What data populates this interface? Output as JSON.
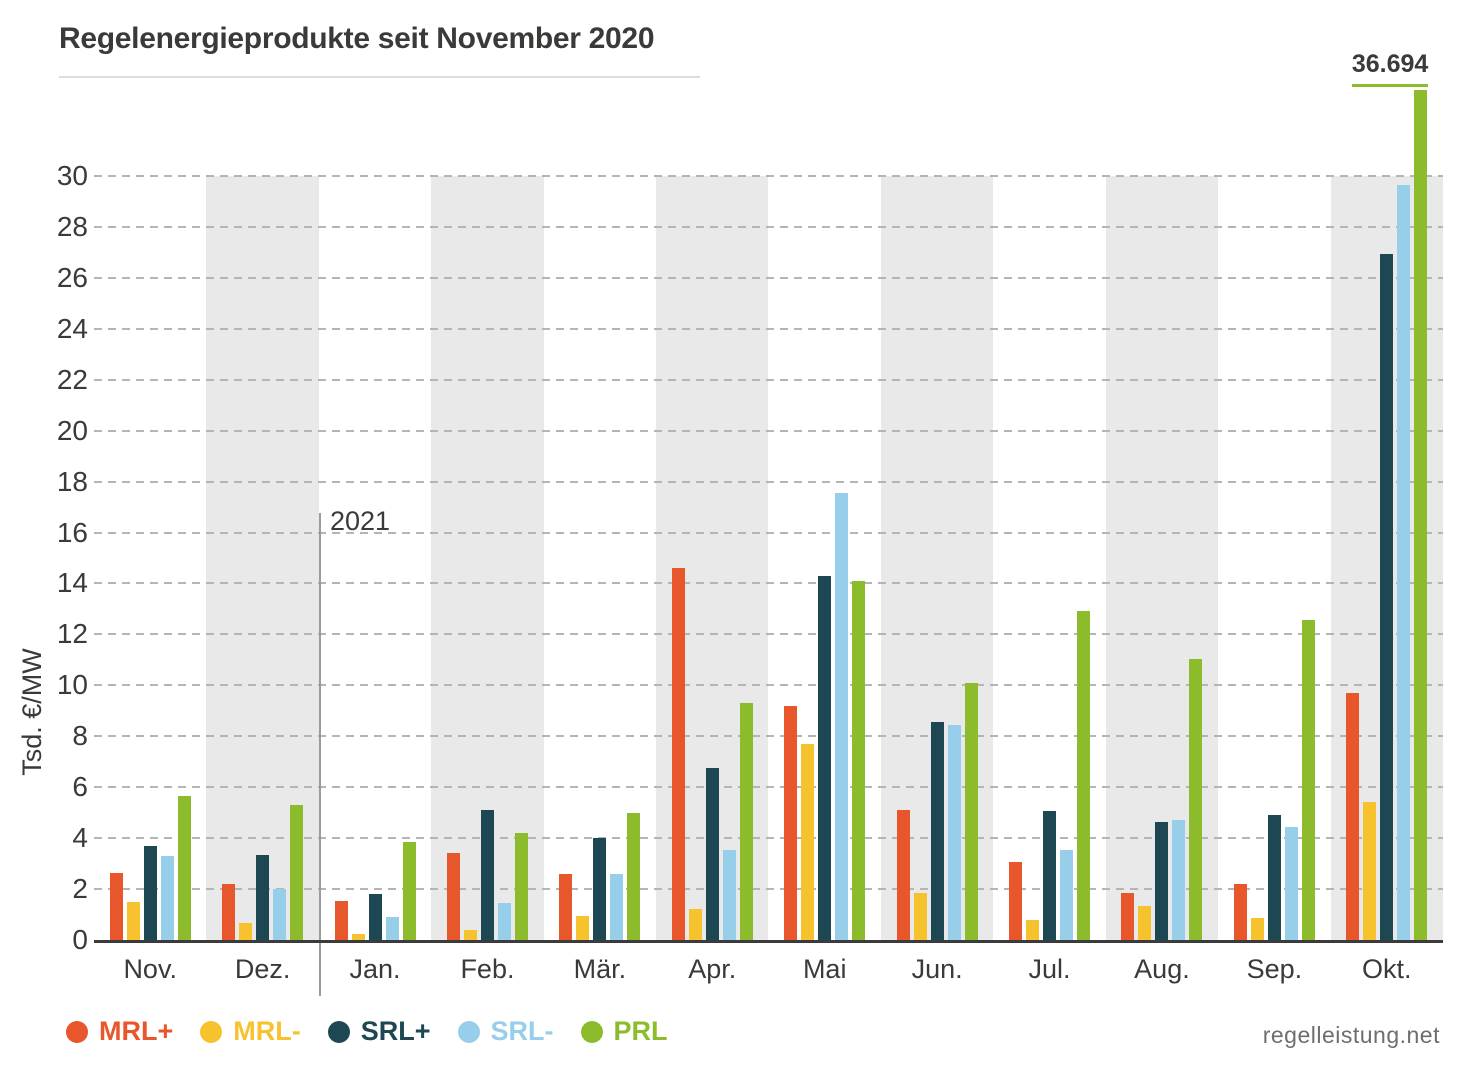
{
  "title": "Regelenergieprodukte seit November 2020",
  "y_axis": {
    "label": "Tsd. €/MW",
    "ticks": [
      0,
      2,
      4,
      6,
      8,
      10,
      12,
      14,
      16,
      18,
      20,
      22,
      24,
      26,
      28,
      30
    ],
    "max": 30
  },
  "year_divider": {
    "label": "2021",
    "between": [
      "Dez.",
      "Jan."
    ]
  },
  "peak_annotation": {
    "label": "36.694",
    "applies_to": {
      "month": "Okt.",
      "series": "PRL"
    }
  },
  "footer": {
    "credit": "regelleistung.net"
  },
  "colors": {
    "mrl_plus": "#e8572b",
    "mrl_minus": "#f6c32f",
    "srl_plus": "#1d4752",
    "srl_minus": "#97ceea",
    "prl": "#8cbb2b",
    "text": "#3a3a39",
    "grid": "#b5b5b5",
    "shade_band": "#e9e9e9"
  },
  "chart_data": {
    "type": "bar",
    "title": "Regelenergieprodukte seit November 2020",
    "xlabel": "",
    "ylabel": "Tsd. €/MW",
    "ylim": [
      0,
      30
    ],
    "grid": "horizontal dashed lines at even values 2-30",
    "legend_position": "bottom-left",
    "shaded_categories": [
      "Dez.",
      "Feb.",
      "Apr.",
      "Jun.",
      "Aug.",
      "Okt."
    ],
    "categories": [
      "Nov.",
      "Dez.",
      "Jan.",
      "Feb.",
      "Mär.",
      "Apr.",
      "Mai",
      "Jun.",
      "Jul.",
      "Aug.",
      "Sep.",
      "Okt."
    ],
    "series": [
      {
        "id": "mrl_plus",
        "name": "MRL+",
        "color": "#e8572b",
        "values": [
          2.65,
          2.2,
          1.55,
          3.4,
          2.6,
          14.6,
          9.2,
          5.1,
          3.05,
          1.85,
          2.2,
          9.7
        ]
      },
      {
        "id": "mrl_minus",
        "name": "MRL-",
        "color": "#f6c32f",
        "values": [
          1.5,
          0.65,
          0.25,
          0.4,
          0.95,
          1.2,
          7.7,
          1.85,
          0.8,
          1.35,
          0.85,
          5.4
        ]
      },
      {
        "id": "srl_plus",
        "name": "SRL+",
        "color": "#1d4752",
        "values": [
          3.7,
          3.35,
          1.8,
          5.1,
          4.0,
          6.75,
          14.3,
          8.55,
          5.05,
          4.65,
          4.9,
          26.95
        ]
      },
      {
        "id": "srl_minus",
        "name": "SRL-",
        "color": "#97ceea",
        "values": [
          3.3,
          2.0,
          0.9,
          1.45,
          2.6,
          3.55,
          17.55,
          8.45,
          3.55,
          4.7,
          4.45,
          29.65
        ]
      },
      {
        "id": "prl",
        "name": "PRL",
        "color": "#8cbb2b",
        "values": [
          5.65,
          5.3,
          3.85,
          4.2,
          5.0,
          9.3,
          14.1,
          10.1,
          12.9,
          11.05,
          12.55,
          36.694
        ]
      }
    ],
    "annotations": [
      {
        "text": "36.694",
        "note": "Okt. PRL bar exceeds axis and is clipped; value shown above bar"
      },
      {
        "text": "2021",
        "note": "vertical divider marking start of year 2021 between Dez. and Jan."
      }
    ]
  },
  "legend": {
    "items": [
      {
        "label": "MRL+",
        "color": "#e8572b"
      },
      {
        "label": "MRL-",
        "color": "#f6c32f"
      },
      {
        "label": "SRL+",
        "color": "#1d4752"
      },
      {
        "label": "SRL-",
        "color": "#97ceea"
      },
      {
        "label": "PRL",
        "color": "#8cbb2b"
      }
    ]
  }
}
